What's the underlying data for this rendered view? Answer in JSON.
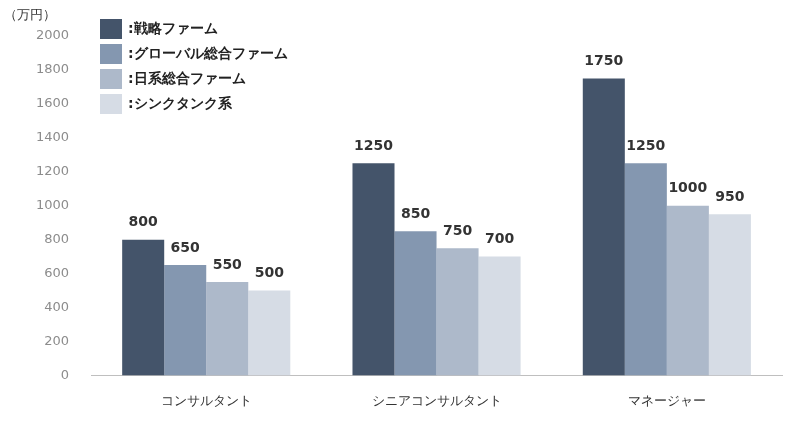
{
  "chart_data": {
    "type": "bar",
    "y_label": "（万円）",
    "categories": [
      "コンサルタント",
      "シニアコンサルタント",
      "マネージャー"
    ],
    "series": [
      {
        "name": ":戦略ファーム",
        "color": "#44546a",
        "values": [
          800,
          1250,
          1750
        ]
      },
      {
        "name": ":グローバル総合ファーム",
        "color": "#8497b0",
        "values": [
          650,
          850,
          1250
        ]
      },
      {
        "name": ":日系総合ファーム",
        "color": "#adb9ca",
        "values": [
          550,
          750,
          1000
        ]
      },
      {
        "name": ":シンクタンク系",
        "color": "#d6dce5",
        "values": [
          500,
          700,
          950
        ]
      }
    ],
    "ylim": [
      0,
      2000
    ],
    "yticks": [
      0,
      200,
      400,
      600,
      800,
      1000,
      1200,
      1400,
      1600,
      1800,
      2000
    ],
    "grid": false,
    "legend": "upper left",
    "data_labels": true
  }
}
